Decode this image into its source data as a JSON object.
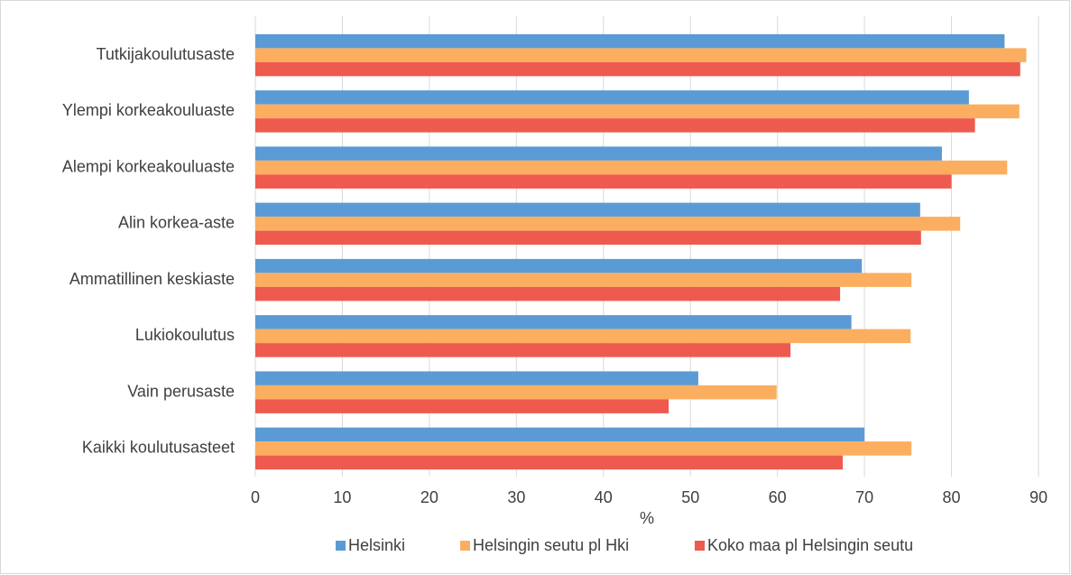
{
  "chart_data": {
    "type": "bar",
    "orientation": "horizontal",
    "categories": [
      "Tutkijakoulutusaste",
      "Ylempi korkeakouluaste",
      "Alempi korkeakouluaste",
      "Alin korkea-aste",
      "Ammatillinen keskiaste",
      "Lukiokoulutus",
      "Vain perusaste",
      "Kaikki koulutusasteet"
    ],
    "series": [
      {
        "name": "Helsinki",
        "color": "#5b9bd5",
        "values": [
          86.1,
          82.0,
          78.9,
          76.4,
          69.7,
          68.5,
          50.9,
          70.0
        ]
      },
      {
        "name": "Helsingin seutu pl Hki",
        "color": "#fbae5f",
        "values": [
          88.6,
          87.8,
          86.4,
          81.0,
          75.4,
          75.3,
          59.9,
          75.4
        ]
      },
      {
        "name": "Koko maa pl Helsingin seutu",
        "color": "#ee5a4e",
        "values": [
          87.9,
          82.7,
          80.0,
          76.5,
          67.2,
          61.5,
          47.5,
          67.5
        ]
      }
    ],
    "x_label": "%",
    "xlim": [
      0,
      90
    ],
    "xticks": [
      0,
      10,
      20,
      30,
      40,
      50,
      60,
      70,
      80,
      90
    ],
    "grid": true,
    "legend": "bottom"
  }
}
